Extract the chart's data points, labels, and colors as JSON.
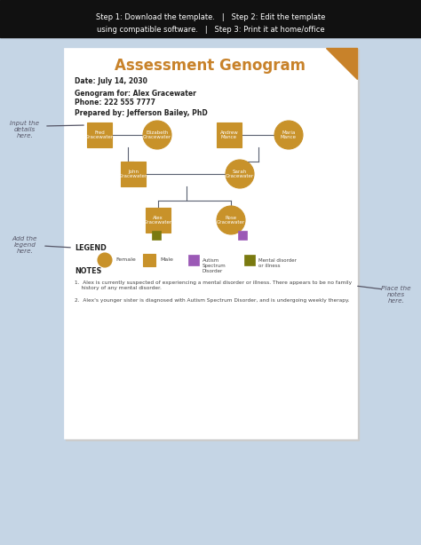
{
  "bg_color": "#c5d5e5",
  "header_bg": "#111111",
  "header_text_line1": "Step 1: Download the template.   |   Step 2: Edit the template",
  "header_text_line2": "using compatible software.   |   Step 3: Print it at home/office",
  "header_text_color": "#ffffff",
  "page_bg": "#ffffff",
  "title": "Assessment Genogram",
  "title_color": "#c8822a",
  "corner_color": "#c8822a",
  "info_lines": [
    "Date: July 14, 2030",
    "Genogram for: Alex Gracewater",
    "Phone: 222 555 7777",
    "Prepared by: Jefferson Bailey, PhD"
  ],
  "node_fill": "#c8922a",
  "node_outline": "#5a6070",
  "line_color": "#5a6070",
  "legend_autism_color": "#9b59b6",
  "legend_mental_color": "#7a7a10",
  "note1": "Alex is currently suspected of experiencing a mental disorder or illness. There appears to be no family\n    history of any mental disorder.",
  "note2": "Alex's younger sister is diagnosed with Autism Spectrum Disorder, and is undergoing weekly therapy.",
  "sidebar_color": "#555566"
}
